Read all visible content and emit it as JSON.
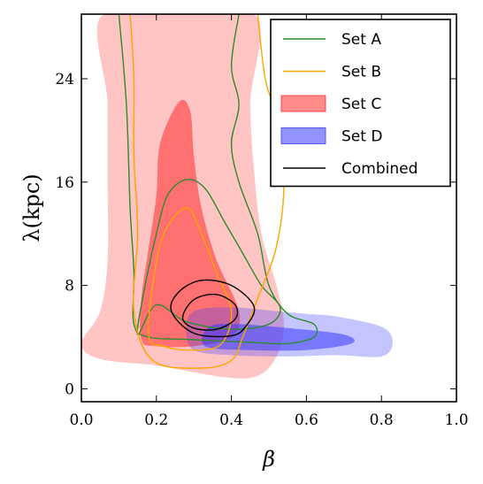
{
  "chart_data": {
    "type": "contour",
    "xlabel": "β",
    "ylabel": "λ(kpc)",
    "xlim": [
      0.0,
      1.0
    ],
    "ylim": [
      -1,
      29
    ],
    "x_ticks": [
      "0.0",
      "0.2",
      "0.4",
      "0.6",
      "0.8",
      "1.0"
    ],
    "y_ticks": [
      "0",
      "8",
      "16",
      "24"
    ],
    "x_tick_values": [
      0.0,
      0.2,
      0.4,
      0.6,
      0.8,
      1.0
    ],
    "y_tick_values": [
      0,
      8,
      16,
      24
    ],
    "legend_position": "top-right",
    "grid": false,
    "series": [
      {
        "name": "Set A",
        "style": "outline",
        "color": "#2e8b2e",
        "contours": [
          [
            [
              0.1,
              29
            ],
            [
              0.12,
              22
            ],
            [
              0.13,
              14
            ],
            [
              0.14,
              9
            ],
            [
              0.14,
              5
            ],
            [
              0.18,
              4
            ],
            [
              0.3,
              3.8
            ],
            [
              0.45,
              3.6
            ],
            [
              0.55,
              3.5
            ],
            [
              0.62,
              4.0
            ],
            [
              0.62,
              5.0
            ],
            [
              0.55,
              5.8
            ],
            [
              0.5,
              8
            ],
            [
              0.47,
              12
            ],
            [
              0.42,
              16
            ],
            [
              0.4,
              19
            ],
            [
              0.42,
              22
            ],
            [
              0.4,
              25
            ],
            [
              0.42,
              29
            ]
          ],
          [
            [
              0.15,
              4.2
            ],
            [
              0.17,
              8
            ],
            [
              0.2,
              12
            ],
            [
              0.23,
              15
            ],
            [
              0.28,
              16.2
            ],
            [
              0.33,
              15.5
            ],
            [
              0.38,
              13
            ],
            [
              0.43,
              10.5
            ],
            [
              0.48,
              8
            ],
            [
              0.53,
              6.3
            ],
            [
              0.5,
              5.0
            ],
            [
              0.4,
              4.6
            ],
            [
              0.28,
              5.2
            ],
            [
              0.2,
              6.5
            ],
            [
              0.15,
              4.2
            ]
          ]
        ]
      },
      {
        "name": "Set B",
        "style": "outline",
        "color": "#ffa500",
        "contours": [
          [
            [
              0.13,
              29
            ],
            [
              0.14,
              24
            ],
            [
              0.14,
              18
            ],
            [
              0.15,
              12
            ],
            [
              0.14,
              6
            ],
            [
              0.19,
              2.2
            ],
            [
              0.32,
              1.6
            ],
            [
              0.4,
              2.2
            ],
            [
              0.43,
              4
            ],
            [
              0.47,
              7
            ],
            [
              0.52,
              11
            ],
            [
              0.54,
              16
            ],
            [
              0.52,
              21
            ],
            [
              0.49,
              24
            ],
            [
              0.47,
              29
            ]
          ],
          [
            [
              0.18,
              4.0
            ],
            [
              0.19,
              8
            ],
            [
              0.22,
              12
            ],
            [
              0.28,
              14
            ],
            [
              0.32,
              12
            ],
            [
              0.36,
              9
            ],
            [
              0.4,
              6
            ],
            [
              0.37,
              3.4
            ],
            [
              0.28,
              3.0
            ],
            [
              0.22,
              3.3
            ],
            [
              0.18,
              4.0
            ]
          ]
        ]
      },
      {
        "name": "Set C",
        "style": "filled",
        "color": "#ff2b2b",
        "outer_opacity": 0.28,
        "inner_opacity": 0.55,
        "contours": [
          [
            [
              0.07,
              29
            ],
            [
              0.07,
              22
            ],
            [
              0.07,
              16
            ],
            [
              0.07,
              10
            ],
            [
              0.05,
              6
            ],
            [
              0.0,
              3.5
            ],
            [
              0.05,
              2.3
            ],
            [
              0.2,
              1.8
            ],
            [
              0.38,
              0.9
            ],
            [
              0.47,
              1.0
            ],
            [
              0.52,
              2.5
            ],
            [
              0.54,
              5
            ],
            [
              0.52,
              8
            ],
            [
              0.48,
              12
            ],
            [
              0.46,
              17
            ],
            [
              0.45,
              22
            ],
            [
              0.45,
              29
            ]
          ],
          [
            [
              0.16,
              3.8
            ],
            [
              0.16,
              7
            ],
            [
              0.18,
              11
            ],
            [
              0.2,
              15
            ],
            [
              0.21,
              19
            ],
            [
              0.26,
              22.2
            ],
            [
              0.29,
              21.5
            ],
            [
              0.3,
              18
            ],
            [
              0.32,
              14
            ],
            [
              0.36,
              10
            ],
            [
              0.42,
              6
            ],
            [
              0.4,
              4.0
            ],
            [
              0.3,
              3.3
            ],
            [
              0.2,
              3.3
            ],
            [
              0.16,
              3.8
            ]
          ]
        ]
      },
      {
        "name": "Set D",
        "style": "filled",
        "color": "#3b3bff",
        "outer_opacity": 0.3,
        "inner_opacity": 0.55,
        "contours": [
          [
            [
              0.3,
              3.0
            ],
            [
              0.28,
              4.5
            ],
            [
              0.3,
              6.0
            ],
            [
              0.4,
              6.3
            ],
            [
              0.52,
              6.0
            ],
            [
              0.6,
              5.8
            ],
            [
              0.68,
              5.6
            ],
            [
              0.8,
              4.8
            ],
            [
              0.83,
              3.6
            ],
            [
              0.8,
              2.5
            ],
            [
              0.68,
              2.6
            ],
            [
              0.55,
              2.5
            ],
            [
              0.4,
              2.6
            ],
            [
              0.3,
              3.0
            ]
          ],
          [
            [
              0.33,
              3.3
            ],
            [
              0.34,
              4.8
            ],
            [
              0.42,
              5.0
            ],
            [
              0.55,
              4.7
            ],
            [
              0.7,
              4.2
            ],
            [
              0.72,
              3.5
            ],
            [
              0.6,
              3.0
            ],
            [
              0.45,
              3.0
            ],
            [
              0.33,
              3.3
            ]
          ]
        ]
      },
      {
        "name": "Combined",
        "style": "outline",
        "color": "#000000",
        "contours": [
          [
            [
              0.24,
              6.0
            ],
            [
              0.26,
              7.5
            ],
            [
              0.32,
              8.4
            ],
            [
              0.4,
              8.0
            ],
            [
              0.46,
              6.4
            ],
            [
              0.44,
              4.9
            ],
            [
              0.4,
              4.1
            ],
            [
              0.3,
              4.3
            ],
            [
              0.24,
              6.0
            ]
          ],
          [
            [
              0.27,
              5.5
            ],
            [
              0.3,
              6.9
            ],
            [
              0.36,
              7.3
            ],
            [
              0.41,
              6.5
            ],
            [
              0.41,
              5.4
            ],
            [
              0.36,
              4.6
            ],
            [
              0.3,
              4.7
            ],
            [
              0.27,
              5.5
            ]
          ]
        ]
      }
    ]
  }
}
